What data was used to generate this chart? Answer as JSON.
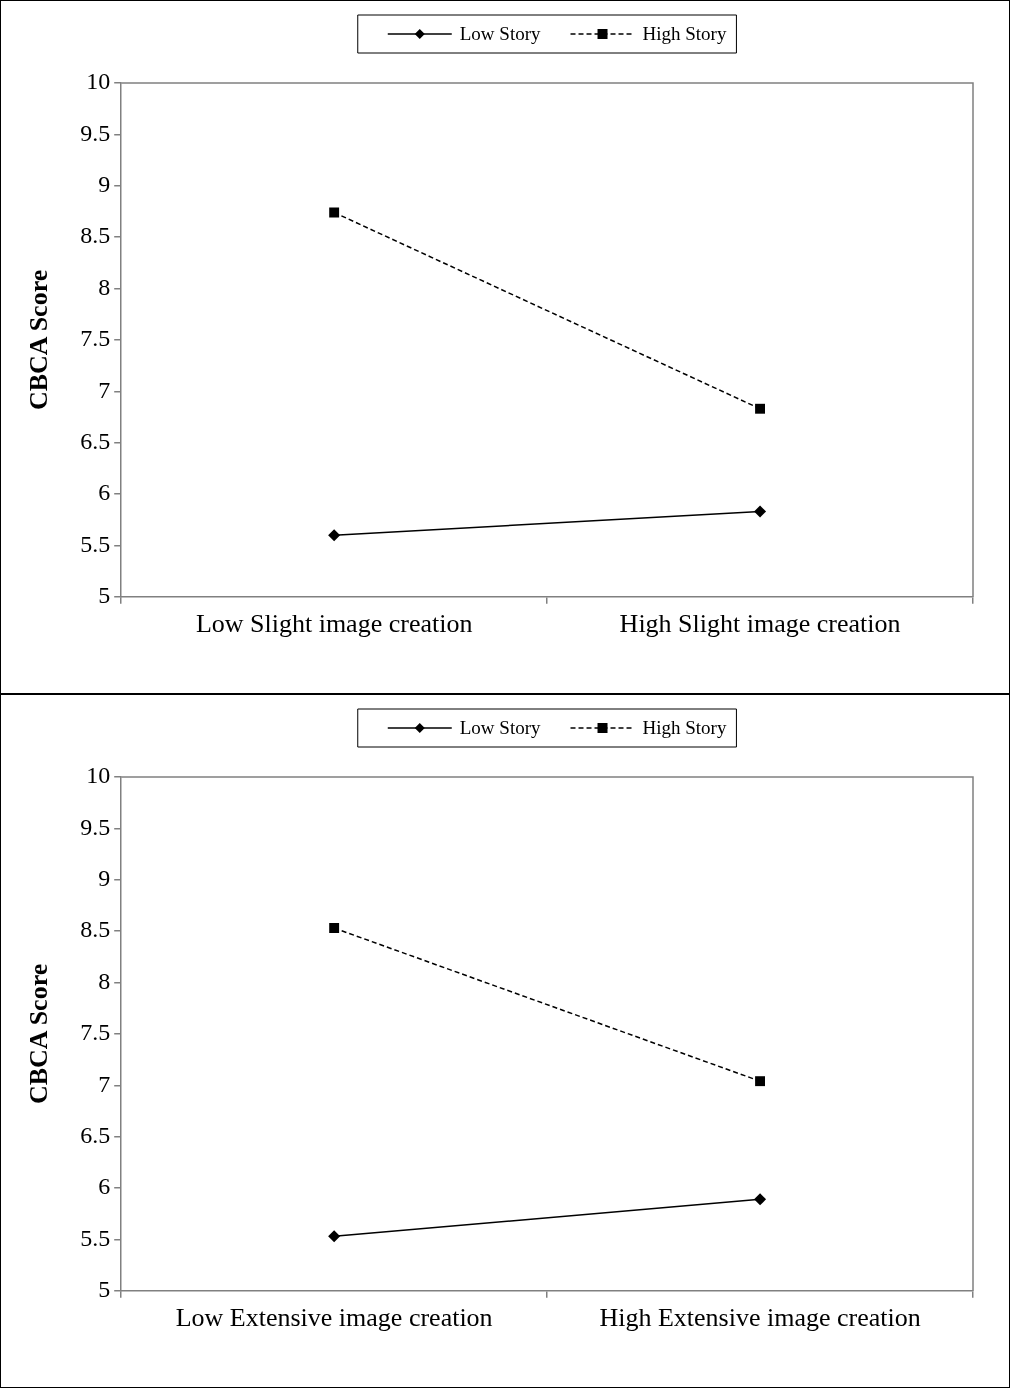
{
  "chart_data": [
    {
      "type": "line",
      "ylabel": "CBCA Score",
      "categories": [
        "Low Slight image creation",
        "High Slight image creation"
      ],
      "series": [
        {
          "name": "Low Story",
          "color": "#000000",
          "values": [
            5.6,
            5.83
          ],
          "marker": "diamond",
          "line_style": "solid"
        },
        {
          "name": "High Story",
          "color": "#000000",
          "values": [
            8.74,
            6.83
          ],
          "marker": "square",
          "line_style": "dashed"
        }
      ],
      "ylim": [
        5,
        10
      ],
      "yticks": [
        5,
        5.5,
        6,
        6.5,
        7,
        7.5,
        8,
        8.5,
        9,
        9.5,
        10
      ],
      "grid": false,
      "legend": "top"
    },
    {
      "type": "line",
      "ylabel": "CBCA Score",
      "categories": [
        "Low Extensive image creation",
        "High Extensive image creation"
      ],
      "series": [
        {
          "name": "Low Story",
          "color": "#000000",
          "values": [
            5.53,
            5.89
          ],
          "marker": "diamond",
          "line_style": "solid"
        },
        {
          "name": "High Story",
          "color": "#000000",
          "values": [
            8.53,
            7.04
          ],
          "marker": "square",
          "line_style": "dashed"
        }
      ],
      "ylim": [
        5,
        10
      ],
      "yticks": [
        5,
        5.5,
        6,
        6.5,
        7,
        7.5,
        8,
        8.5,
        9,
        9.5,
        10
      ],
      "grid": false,
      "legend": "top"
    }
  ]
}
